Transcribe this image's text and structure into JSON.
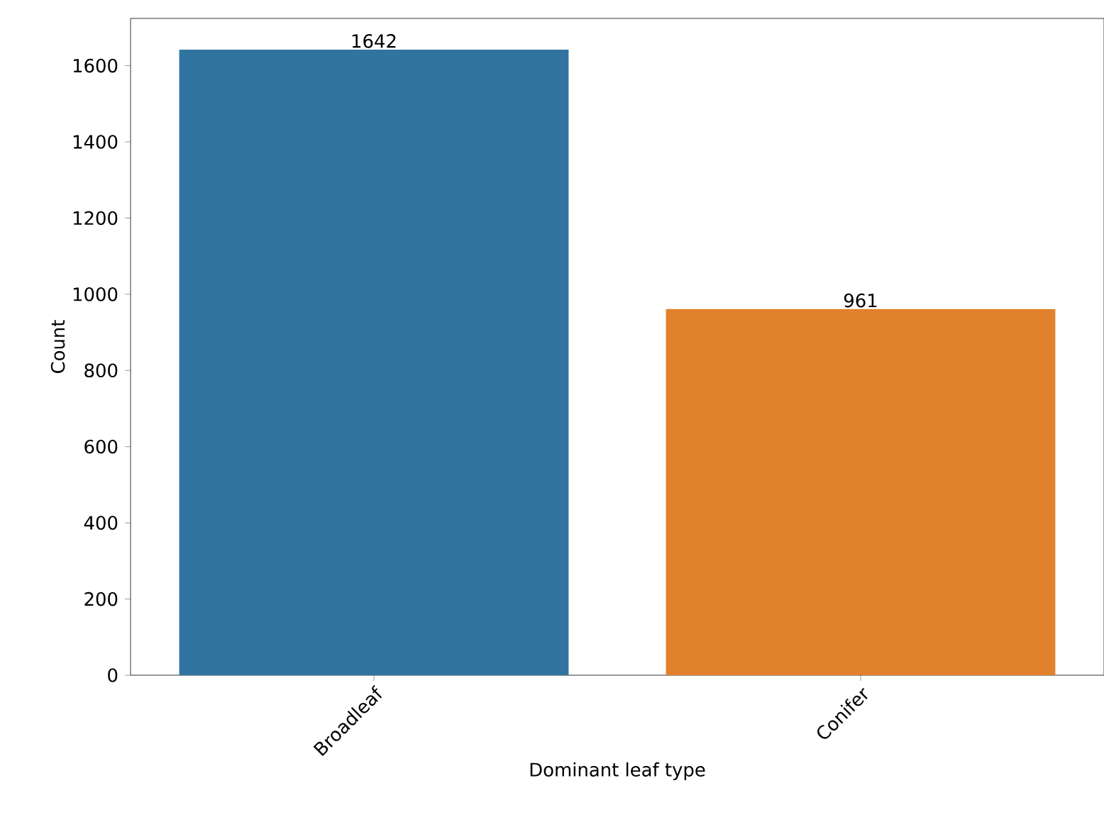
{
  "chart_data": {
    "type": "bar",
    "xlabel": "Dominant leaf type",
    "ylabel": "Count",
    "categories": [
      "Broadleaf",
      "Conifer"
    ],
    "values": [
      1642,
      961
    ],
    "colors": [
      "#3274a1",
      "#e1812c"
    ],
    "ylim": [
      0,
      1724
    ],
    "yticks": [
      0,
      200,
      400,
      600,
      800,
      1000,
      1200,
      1400,
      1600
    ],
    "data_labels": true,
    "grid": false
  }
}
